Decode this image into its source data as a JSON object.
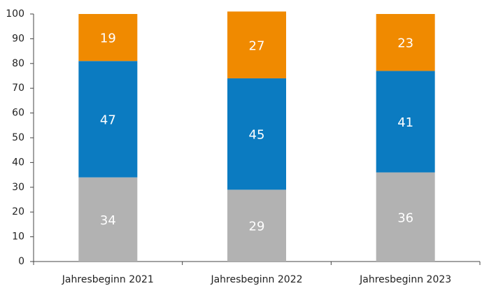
{
  "chart_data": {
    "type": "stacked_bar",
    "categories": [
      "Jahresbeginn 2021",
      "Jahresbeginn 2022",
      "Jahresbeginn 2023"
    ],
    "series": [
      {
        "color": "#b2b2b2",
        "values": [
          34,
          29,
          36
        ]
      },
      {
        "color": "#0b7bc1",
        "values": [
          47,
          45,
          41
        ]
      },
      {
        "color": "#f08a00",
        "values": [
          19,
          27,
          23
        ]
      }
    ],
    "ylim": [
      0,
      100
    ],
    "yticks": [
      0,
      10,
      20,
      30,
      40,
      50,
      60,
      70,
      80,
      90,
      100
    ]
  }
}
